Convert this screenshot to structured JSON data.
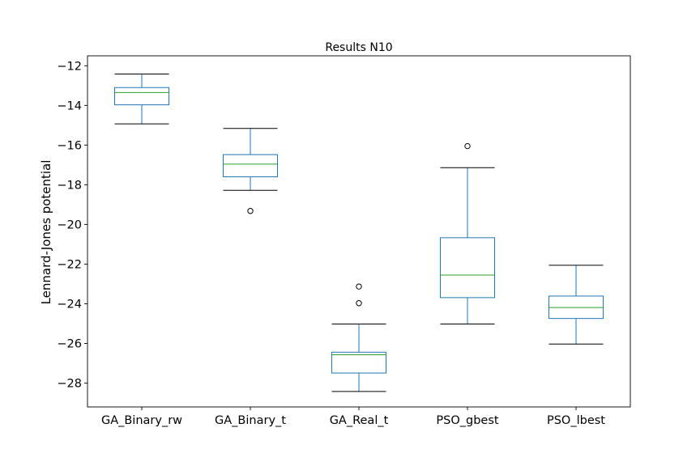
{
  "chart_data": {
    "type": "box",
    "title": "Results N10",
    "xlabel": "",
    "ylabel": "Lennard-Jones potential",
    "ylim": [
      -29.2,
      -11.5
    ],
    "yticks": [
      -28,
      -26,
      -24,
      -22,
      -20,
      -18,
      -16,
      -14,
      -12
    ],
    "ytick_labels": [
      "−28",
      "−26",
      "−24",
      "−22",
      "−20",
      "−18",
      "−16",
      "−14",
      "−12"
    ],
    "categories": [
      "GA_Binary_rw",
      "GA_Binary_t",
      "GA_Real_t",
      "PSO_gbest",
      "PSO_lbest"
    ],
    "boxes": [
      {
        "name": "GA_Binary_rw",
        "whislo": -14.93,
        "q1": -13.97,
        "med": -13.35,
        "q3": -13.1,
        "whishi": -12.42,
        "fliers": []
      },
      {
        "name": "GA_Binary_t",
        "whislo": -18.28,
        "q1": -17.6,
        "med": -16.96,
        "q3": -16.48,
        "whishi": -15.16,
        "fliers": [
          -19.32
        ]
      },
      {
        "name": "GA_Real_t",
        "whislo": -28.42,
        "q1": -27.49,
        "med": -26.57,
        "q3": -26.44,
        "whishi": -25.02,
        "fliers": [
          -23.97,
          -23.13
        ]
      },
      {
        "name": "PSO_gbest",
        "whislo": -25.02,
        "q1": -23.69,
        "med": -22.55,
        "q3": -20.67,
        "whishi": -17.14,
        "fliers": [
          -16.05
        ]
      },
      {
        "name": "PSO_lbest",
        "whislo": -26.03,
        "q1": -24.74,
        "med": -24.19,
        "q3": -23.61,
        "whishi": -22.06,
        "fliers": []
      }
    ],
    "grid": false,
    "colors": {
      "box": "#1f77b4",
      "median": "#2ca02c",
      "whisker": "#1f77b4",
      "cap": "#000000",
      "flier": "#000000",
      "axes": "#000000"
    }
  }
}
